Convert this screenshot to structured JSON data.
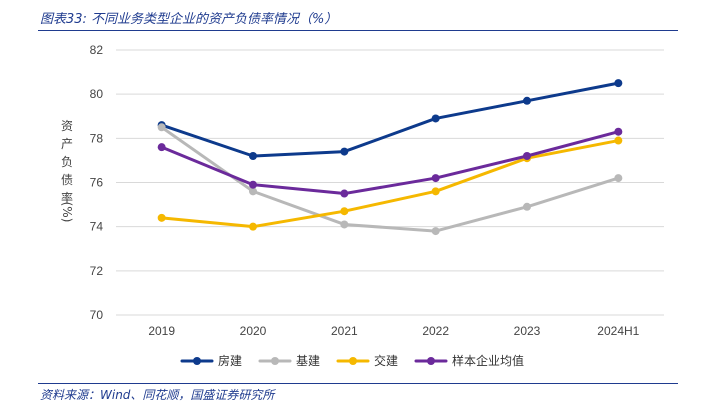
{
  "header": {
    "title": "图表33:  不同业务类型企业的资产负债率情况（%）"
  },
  "footer": {
    "source": "资料来源：Wind、同花顺，国盛证券研究所"
  },
  "chart_data": {
    "type": "line",
    "title": "图表33:  不同业务类型企业的资产负债率情况（%）",
    "xlabel": "",
    "ylabel": "资产负债率(%)",
    "ylabel_chars": [
      "资",
      "产",
      "负",
      "债",
      "率",
      "(%)"
    ],
    "categories": [
      "2019",
      "2020",
      "2021",
      "2022",
      "2023",
      "2024H1"
    ],
    "ylim": [
      70,
      82
    ],
    "yticks": [
      70,
      72,
      74,
      76,
      78,
      80,
      82
    ],
    "grid": true,
    "legend_position": "bottom",
    "series": [
      {
        "name": "房建",
        "color": "#0d3a8c",
        "values": [
          78.6,
          77.2,
          77.4,
          78.9,
          79.7,
          80.5
        ]
      },
      {
        "name": "基建",
        "color": "#b8b8b8",
        "values": [
          78.5,
          75.6,
          74.1,
          73.8,
          74.9,
          76.2
        ]
      },
      {
        "name": "交建",
        "color": "#f5b800",
        "values": [
          74.4,
          74.0,
          74.7,
          75.6,
          77.1,
          77.9
        ]
      },
      {
        "name": "样本企业均值",
        "color": "#6b2a9b",
        "values": [
          77.6,
          75.9,
          75.5,
          76.2,
          77.2,
          78.3
        ]
      }
    ]
  }
}
